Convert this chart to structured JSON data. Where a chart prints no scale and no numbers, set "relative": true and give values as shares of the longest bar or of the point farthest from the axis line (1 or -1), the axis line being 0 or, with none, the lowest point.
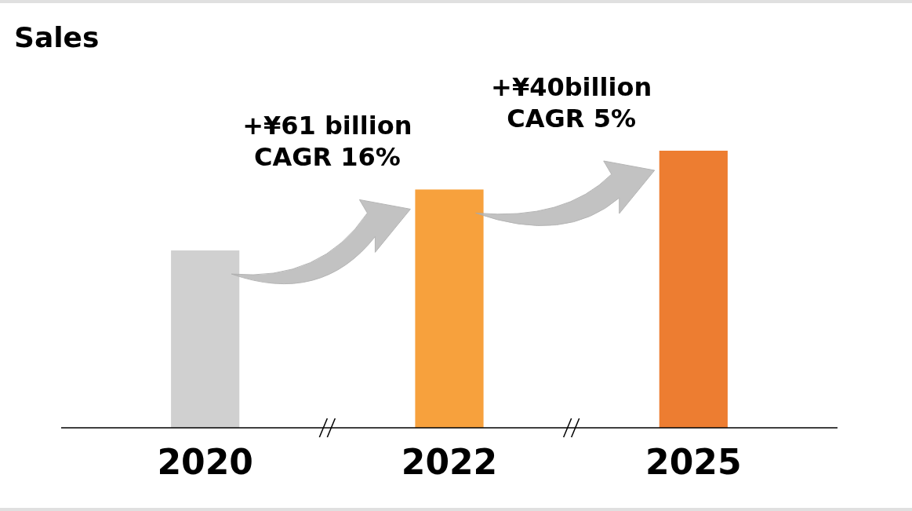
{
  "chart_data": {
    "type": "bar",
    "title": "Sales",
    "relative": true,
    "categories": [
      "2020",
      "2022",
      "2025"
    ],
    "values": [
      0.64,
      0.86,
      1
    ],
    "colors": [
      "#d0d0d0",
      "#f7a13d",
      "#ed7d31"
    ],
    "annotations": [
      "+¥61 billion\nCAGR 16%",
      "+¥40billion\nCAGR 5%"
    ]
  }
}
